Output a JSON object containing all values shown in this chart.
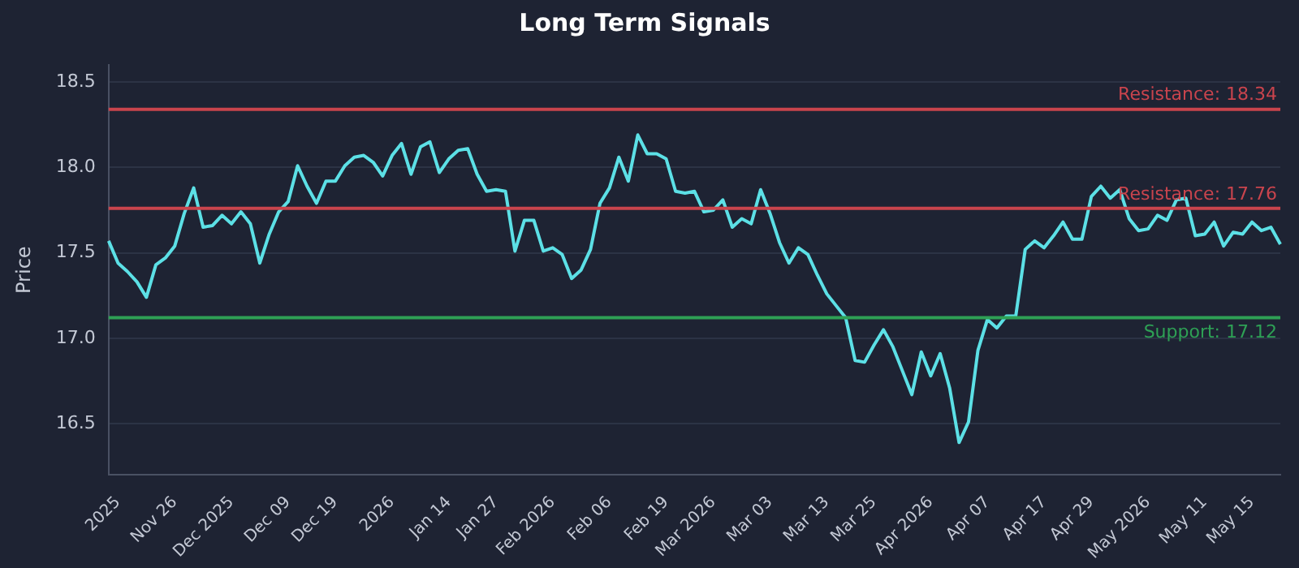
{
  "chart_data": {
    "type": "line",
    "title": "Long Term Signals",
    "ylabel": "Price",
    "categories": [
      null,
      "2025",
      null,
      null,
      null,
      null,
      null,
      "Nov 26",
      null,
      null,
      null,
      null,
      null,
      "Dec 2025",
      null,
      null,
      null,
      null,
      null,
      "Dec 09",
      null,
      null,
      null,
      null,
      "Dec 19",
      null,
      null,
      null,
      null,
      null,
      "2026",
      null,
      null,
      null,
      null,
      null,
      "Jan 14",
      null,
      null,
      null,
      null,
      "Jan 27",
      null,
      null,
      null,
      null,
      null,
      "Feb 2026",
      null,
      null,
      null,
      null,
      null,
      "Feb 06",
      null,
      null,
      null,
      null,
      null,
      "Feb 19",
      null,
      null,
      null,
      null,
      "Mar 2026",
      null,
      null,
      null,
      null,
      null,
      "Mar 03",
      null,
      null,
      null,
      null,
      null,
      "Mar 13",
      null,
      null,
      null,
      null,
      "Mar 25",
      null,
      null,
      null,
      null,
      null,
      "Apr 2026",
      null,
      null,
      null,
      null,
      null,
      "Apr 07",
      null,
      null,
      null,
      null,
      null,
      "Apr 17",
      null,
      null,
      null,
      null,
      "Apr 29",
      null,
      null,
      null,
      null,
      null,
      "May 2026",
      null,
      null,
      null,
      null,
      null,
      "May 11",
      null,
      null,
      null,
      null,
      "May 15",
      null,
      null,
      null
    ],
    "series": [
      {
        "color": "#5ce0e6",
        "values": [
          17.57,
          17.44,
          17.39,
          17.33,
          17.24,
          17.43,
          17.47,
          17.54,
          17.73,
          17.88,
          17.65,
          17.66,
          17.72,
          17.67,
          17.74,
          17.67,
          17.44,
          17.61,
          17.74,
          17.8,
          18.01,
          17.89,
          17.79,
          17.92,
          17.92,
          18.01,
          18.06,
          18.07,
          18.03,
          17.95,
          18.07,
          18.14,
          17.96,
          18.12,
          18.15,
          17.97,
          18.05,
          18.1,
          18.11,
          17.96,
          17.86,
          17.87,
          17.86,
          17.51,
          17.69,
          17.69,
          17.51,
          17.53,
          17.49,
          17.35,
          17.4,
          17.52,
          17.79,
          17.88,
          18.06,
          17.92,
          18.19,
          18.08,
          18.08,
          18.05,
          17.86,
          17.85,
          17.86,
          17.74,
          17.75,
          17.81,
          17.65,
          17.7,
          17.67,
          17.87,
          17.73,
          17.56,
          17.44,
          17.53,
          17.49,
          17.37,
          17.26,
          17.19,
          17.12,
          16.87,
          16.86,
          16.96,
          17.05,
          16.95,
          16.81,
          16.67,
          16.92,
          16.78,
          16.91,
          16.71,
          16.39,
          16.51,
          16.93,
          17.11,
          17.06,
          17.13,
          17.13,
          17.52,
          17.57,
          17.53,
          17.6,
          17.68,
          17.58,
          17.58,
          17.83,
          17.89,
          17.82,
          17.87,
          17.7,
          17.63,
          17.64,
          17.72,
          17.69,
          17.81,
          17.82,
          17.6,
          17.61,
          17.68,
          17.54,
          17.62,
          17.61,
          17.68,
          17.63,
          17.65,
          17.55
        ]
      }
    ],
    "ylim": [
      16.2,
      18.6
    ],
    "yticks": [
      16.5,
      {
        "value": 17,
        "label": "17.0"
      },
      17.5,
      {
        "value": 18,
        "label": "18.0"
      },
      18.5
    ],
    "ref_lines": [
      {
        "axis": "y",
        "value": 18.34,
        "label": "Resistance: 18.34",
        "color": "#c9444d"
      },
      {
        "axis": "y",
        "value": 17.76,
        "label": "Resistance: 17.76",
        "color": "#c9444d"
      },
      {
        "axis": "y",
        "value": 17.12,
        "label": "Support: 17.12",
        "color": "#2ea055"
      }
    ],
    "grid": "y",
    "legend": false,
    "marker": "none",
    "line_style": "solid"
  }
}
